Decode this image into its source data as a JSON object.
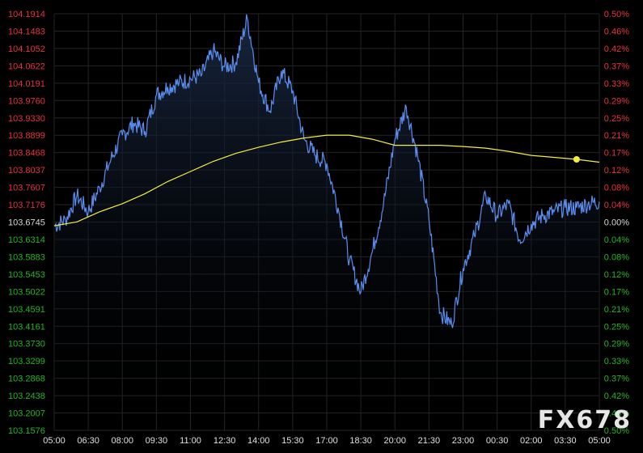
{
  "watermark": "FX678",
  "colors": {
    "background": "#000000",
    "grid": "#242424",
    "price_line": "#5a8ef0",
    "area_top": "#1a2a45",
    "average_line": "#f4ee3a",
    "up_label": "#e8323c",
    "down_label": "#23b523",
    "neutral_label": "#d8d8d8",
    "x_label": "#e0e0e0"
  },
  "chart_data": {
    "type": "line",
    "title": "",
    "xlabel": "",
    "ylabel": "",
    "reference_price": 103.6745,
    "ylim": [
      103.1576,
      104.1914
    ],
    "y_ticks_left": [
      "104.1914",
      "104.1483",
      "104.1052",
      "104.0622",
      "104.0191",
      "103.9760",
      "103.9330",
      "103.8899",
      "103.8468",
      "103.8037",
      "103.7607",
      "103.7176",
      "103.6745",
      "103.6314",
      "103.5883",
      "103.5453",
      "103.5022",
      "103.4591",
      "103.4161",
      "103.3730",
      "103.3299",
      "103.2868",
      "103.2438",
      "103.2007",
      "103.1576"
    ],
    "y_ticks_right": [
      "0.50%",
      "0.46%",
      "0.42%",
      "0.37%",
      "0.33%",
      "0.29%",
      "0.25%",
      "0.21%",
      "0.17%",
      "0.12%",
      "0.08%",
      "0.04%",
      "0.00%",
      "0.04%",
      "0.08%",
      "0.12%",
      "0.17%",
      "0.21%",
      "0.25%",
      "0.29%",
      "0.33%",
      "0.37%",
      "0.42%",
      "0.46%",
      "0.50%"
    ],
    "x_ticks": [
      "05:00",
      "06:30",
      "08:00",
      "09:30",
      "11:00",
      "12:30",
      "14:00",
      "15:30",
      "17:00",
      "18:30",
      "20:00",
      "21:30",
      "23:00",
      "00:30",
      "02:00",
      "03:30",
      "05:00"
    ],
    "grid": true,
    "series": [
      {
        "role": "price",
        "x": [
          0,
          0.5,
          1,
          1.5,
          2,
          2.5,
          3,
          3.5,
          4,
          4.5,
          5,
          5.5,
          6,
          6.5,
          7,
          7.5,
          8,
          8.5,
          9,
          9.5,
          10,
          10.5,
          11,
          11.5,
          12,
          12.5,
          13,
          13.5,
          14,
          14.5,
          15,
          15.5,
          16,
          16.5,
          17,
          17.5,
          18,
          18.5,
          19,
          19.5,
          20,
          20.5,
          21,
          21.5,
          22,
          22.5,
          23,
          23.5,
          24
        ],
        "values": [
          103.665,
          103.68,
          103.74,
          103.7,
          103.76,
          103.83,
          103.89,
          103.92,
          103.9,
          103.99,
          104.01,
          104.02,
          104.03,
          104.04,
          104.1,
          104.06,
          104.07,
          104.18,
          104.02,
          103.95,
          104.05,
          104.0,
          103.88,
          103.84,
          103.82,
          103.71,
          103.58,
          103.5,
          103.6,
          103.72,
          103.88,
          103.96,
          103.84,
          103.68,
          103.45,
          103.42,
          103.56,
          103.64,
          103.74,
          103.69,
          103.72,
          103.63,
          103.67,
          103.69,
          103.7,
          103.71,
          103.71,
          103.72,
          103.725
        ]
      },
      {
        "role": "average",
        "x": [
          0,
          1,
          2,
          3,
          4,
          5,
          6,
          7,
          8,
          9,
          10,
          11,
          12,
          13,
          14,
          15,
          16,
          17,
          18,
          19,
          20,
          21,
          22,
          23,
          24
        ],
        "values": [
          103.665,
          103.675,
          103.7,
          103.72,
          103.745,
          103.775,
          103.8,
          103.825,
          103.845,
          103.86,
          103.873,
          103.883,
          103.89,
          103.89,
          103.88,
          103.865,
          103.865,
          103.865,
          103.862,
          103.858,
          103.85,
          103.84,
          103.835,
          103.83,
          103.823
        ]
      }
    ]
  }
}
